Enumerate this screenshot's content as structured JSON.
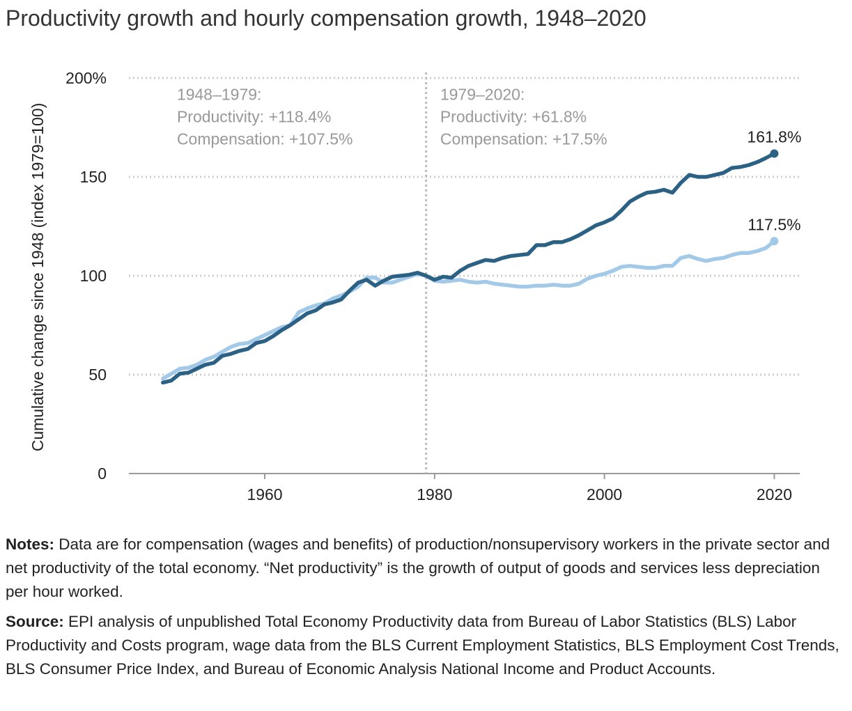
{
  "title": "Productivity growth and hourly compensation growth, 1948–2020",
  "notes": {
    "notes_label": "Notes:",
    "notes_text": "Data are for compensation (wages and benefits) of production/nonsupervisory workers in the private sector and net productivity of the total economy. “Net productivity” is the growth of output of goods and services less depreciation per hour worked.",
    "source_label": "Source:",
    "source_text": "EPI analysis of unpublished Total Economy Productivity data from Bureau of Labor Statistics (BLS) Labor Productivity and Costs program, wage data from the BLS Current Employment Statistics, BLS Employment Cost Trends, BLS Consumer Price Index, and Bureau of Economic Analysis National Income and Product Accounts."
  },
  "chart_data": {
    "type": "line",
    "title": "Productivity growth and hourly compensation growth, 1948–2020",
    "xlabel": "",
    "ylabel": "Cumulative change since 1948 (index 1979=100)",
    "xlim": [
      1944,
      2023
    ],
    "ylim": [
      0,
      200
    ],
    "x_ticks": [
      1960,
      1980,
      2000,
      2020
    ],
    "x_tick_labels": [
      "1960",
      "1980",
      "2000",
      "2020"
    ],
    "y_ticks": [
      0,
      50,
      100,
      150,
      200
    ],
    "y_tick_labels": [
      "0",
      "50",
      "100",
      "150",
      "200%"
    ],
    "grid": "horizontal dotted",
    "divider_year": 1979,
    "annotations": [
      {
        "lines": [
          "1948–1979:",
          "Productivity: +118.4%",
          "Compensation: +107.5%"
        ],
        "anchor_year": 1949,
        "anchor_value": 196
      },
      {
        "lines": [
          "1979–2020:",
          "Productivity: +61.8%",
          "Compensation: +17.5%"
        ],
        "anchor_year": 1980,
        "anchor_value": 196
      }
    ],
    "colors": {
      "productivity": "#2b6184",
      "compensation": "#a3c9e8",
      "grid": "#cccccc",
      "annotation": "#999999"
    },
    "series": [
      {
        "key": "productivity",
        "end_label": "161.8%",
        "x": [
          1948,
          1949,
          1950,
          1951,
          1952,
          1953,
          1954,
          1955,
          1956,
          1957,
          1958,
          1959,
          1960,
          1961,
          1962,
          1963,
          1964,
          1965,
          1966,
          1967,
          1968,
          1969,
          1970,
          1971,
          1972,
          1973,
          1974,
          1975,
          1976,
          1977,
          1978,
          1979,
          1980,
          1981,
          1982,
          1983,
          1984,
          1985,
          1986,
          1987,
          1988,
          1989,
          1990,
          1991,
          1992,
          1993,
          1994,
          1995,
          1996,
          1997,
          1998,
          1999,
          2000,
          2001,
          2002,
          2003,
          2004,
          2005,
          2006,
          2007,
          2008,
          2009,
          2010,
          2011,
          2012,
          2013,
          2014,
          2015,
          2016,
          2017,
          2018,
          2019,
          2020
        ],
        "values": [
          46,
          47,
          50.5,
          51,
          53,
          55,
          56,
          59.5,
          60.5,
          62,
          63,
          66,
          67,
          69.5,
          72.5,
          75,
          78,
          81,
          82.5,
          85.5,
          86.5,
          88,
          92.5,
          96.5,
          98,
          95,
          97.5,
          99.5,
          100,
          100.5,
          101.5,
          100,
          98,
          99.5,
          99,
          102.5,
          105,
          106.5,
          108,
          107.5,
          109,
          110,
          110.5,
          111,
          115.5,
          115.5,
          117,
          117,
          118.5,
          120.5,
          123,
          125.5,
          127,
          129,
          133,
          137.5,
          140,
          142,
          142.5,
          143.5,
          142,
          147,
          151,
          150,
          150,
          151,
          152,
          154.5,
          155,
          156,
          157.5,
          159.5,
          161.8
        ]
      },
      {
        "key": "compensation",
        "end_label": "117.5%",
        "x": [
          1948,
          1949,
          1950,
          1951,
          1952,
          1953,
          1954,
          1955,
          1956,
          1957,
          1958,
          1959,
          1960,
          1961,
          1962,
          1963,
          1964,
          1965,
          1966,
          1967,
          1968,
          1969,
          1970,
          1971,
          1972,
          1973,
          1974,
          1975,
          1976,
          1977,
          1978,
          1979,
          1980,
          1981,
          1982,
          1983,
          1984,
          1985,
          1986,
          1987,
          1988,
          1989,
          1990,
          1991,
          1992,
          1993,
          1994,
          1995,
          1996,
          1997,
          1998,
          1999,
          2000,
          2001,
          2002,
          2003,
          2004,
          2005,
          2006,
          2007,
          2008,
          2009,
          2010,
          2011,
          2012,
          2013,
          2014,
          2015,
          2016,
          2017,
          2018,
          2019,
          2020
        ],
        "values": [
          48,
          50.5,
          53,
          53.5,
          55,
          57.5,
          59,
          61.5,
          64,
          65.5,
          66,
          68,
          70,
          72,
          74,
          75,
          81.5,
          83.5,
          85,
          86,
          88.5,
          90,
          92,
          94.5,
          99,
          99,
          96.5,
          96.5,
          98,
          99.5,
          101,
          100,
          97.5,
          97,
          97.5,
          98,
          97,
          96.5,
          97,
          96,
          95.5,
          95,
          94.5,
          94.5,
          95,
          95,
          95.5,
          95,
          95,
          96,
          98.5,
          100,
          101,
          102.5,
          104.5,
          105,
          104.5,
          104,
          104,
          105,
          105,
          109,
          110,
          108.5,
          107.5,
          108.5,
          109,
          110.5,
          111.5,
          111.5,
          112.5,
          114,
          117.5
        ]
      }
    ]
  }
}
